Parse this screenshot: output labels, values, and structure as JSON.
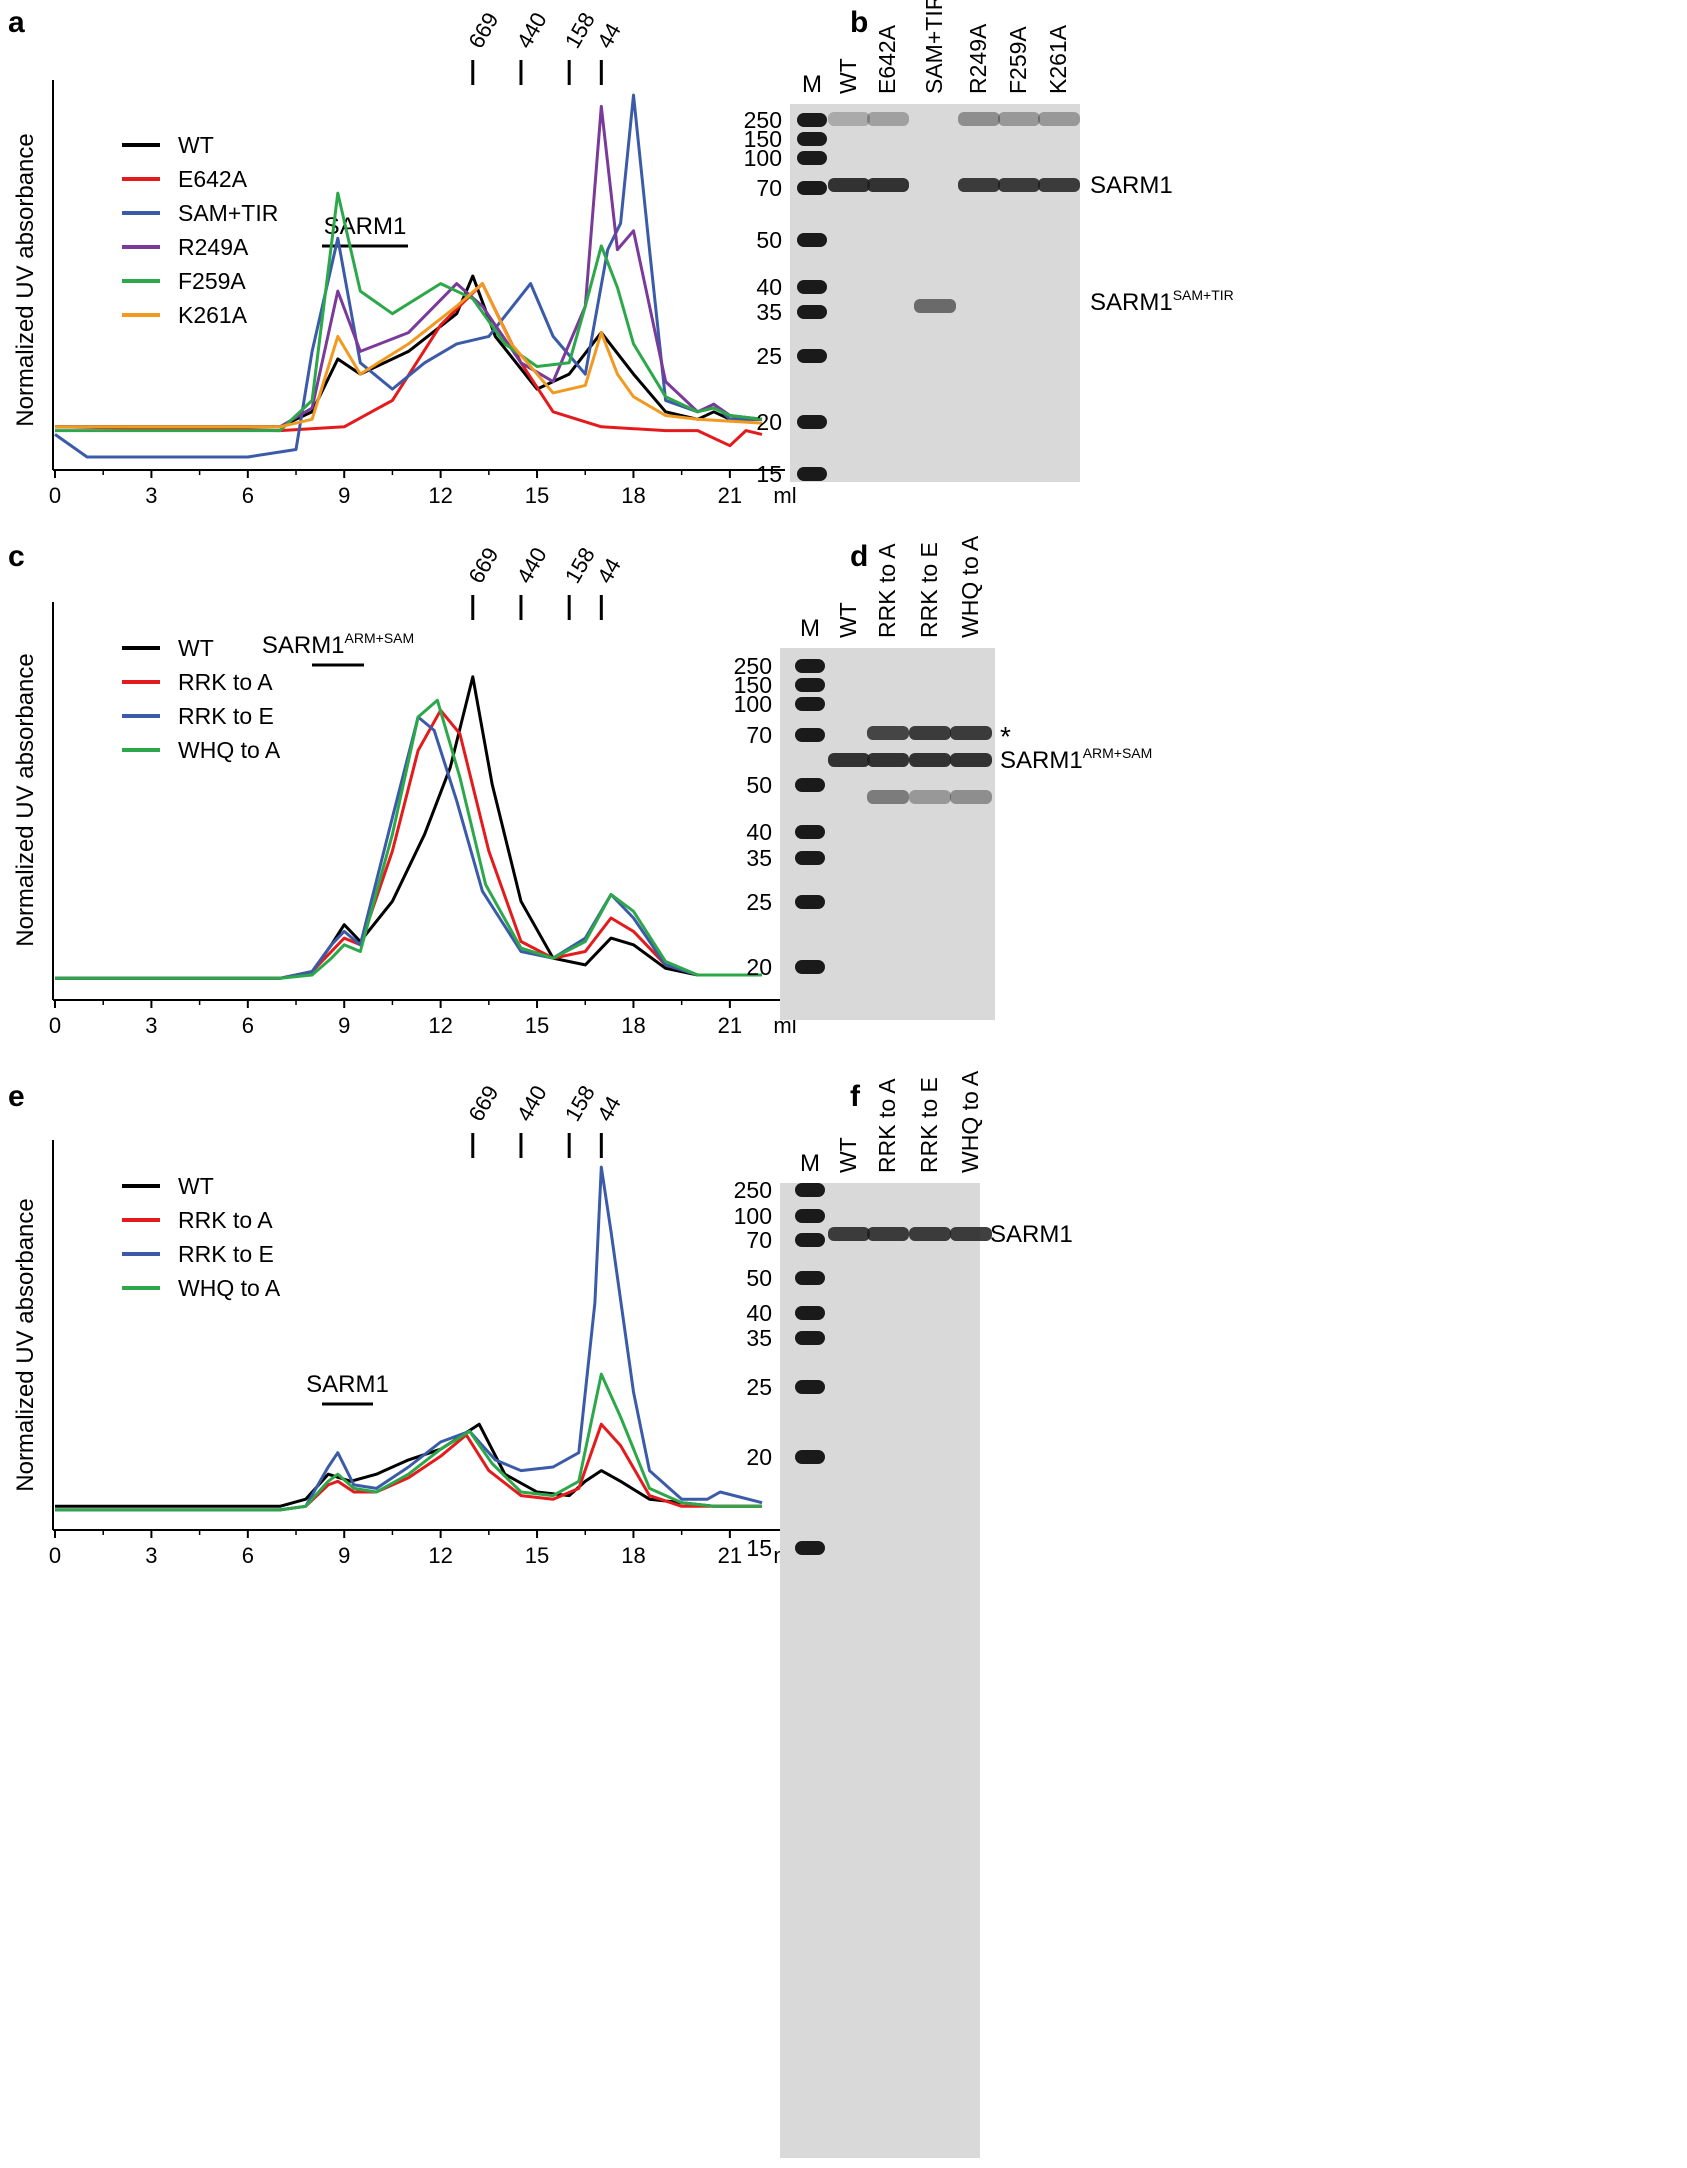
{
  "panels": {
    "a": {
      "letter": "a",
      "ylabel": "Normalized UV absorbance",
      "xunit": "ml",
      "xticks": [
        "0",
        "3",
        "6",
        "9",
        "12",
        "15",
        "18",
        "21"
      ],
      "markers": [
        "669",
        "440",
        "158",
        "44"
      ],
      "marker_positions_ml": [
        13.0,
        14.5,
        16.0,
        17.0
      ],
      "bracket_label": "SARM1",
      "bracket_sup": "",
      "legend": [
        {
          "name": "WT",
          "color": "#000000"
        },
        {
          "name": "E642A",
          "color": "#e41a1c"
        },
        {
          "name": "SAM+TIR",
          "color": "#3b5ba9"
        },
        {
          "name": "R249A",
          "color": "#7a3a9a"
        },
        {
          "name": "F259A",
          "color": "#2ca84a"
        },
        {
          "name": "K261A",
          "color": "#f29a20"
        }
      ]
    },
    "b": {
      "letter": "b",
      "marker_label": "M",
      "lanes": [
        "WT",
        "E642A",
        "SAM+TIR",
        "R249A",
        "F259A",
        "K261A"
      ],
      "mw": [
        "250",
        "150",
        "100",
        "70",
        "50",
        "40",
        "35",
        "25",
        "20",
        "15"
      ],
      "band_labels": [
        {
          "text": "SARM1",
          "sup": ""
        },
        {
          "text": "SARM1",
          "sup": "SAM+TIR"
        }
      ]
    },
    "c": {
      "letter": "c",
      "ylabel": "Normalized UV absorbance",
      "xunit": "ml",
      "xticks": [
        "0",
        "3",
        "6",
        "9",
        "12",
        "15",
        "18",
        "21"
      ],
      "markers": [
        "669",
        "440",
        "158",
        "44"
      ],
      "bracket_label": "SARM1",
      "bracket_sup": "ARM+SAM",
      "legend": [
        {
          "name": "WT",
          "color": "#000000"
        },
        {
          "name": "RRK to A",
          "color": "#e41a1c"
        },
        {
          "name": "RRK to E",
          "color": "#3b5ba9"
        },
        {
          "name": "WHQ to A",
          "color": "#2ca84a"
        }
      ]
    },
    "d": {
      "letter": "d",
      "marker_label": "M",
      "lanes": [
        "WT",
        "RRK to A",
        "RRK to E",
        "WHQ to A"
      ],
      "mw": [
        "250",
        "150",
        "100",
        "70",
        "50",
        "40",
        "35",
        "25",
        "20"
      ],
      "asterisk": "*",
      "band_labels": [
        {
          "text": "SARM1",
          "sup": "ARM+SAM"
        }
      ]
    },
    "e": {
      "letter": "e",
      "ylabel": "Normalized UV absorbance",
      "xunit": "ml",
      "xticks": [
        "0",
        "3",
        "6",
        "9",
        "12",
        "15",
        "18",
        "21"
      ],
      "markers": [
        "669",
        "440",
        "158",
        "44"
      ],
      "bracket_label": "SARM1",
      "bracket_sup": "",
      "legend": [
        {
          "name": "WT",
          "color": "#000000"
        },
        {
          "name": "RRK to A",
          "color": "#e41a1c"
        },
        {
          "name": "RRK to E",
          "color": "#3b5ba9"
        },
        {
          "name": "WHQ to A",
          "color": "#2ca84a"
        }
      ]
    },
    "f": {
      "letter": "f",
      "marker_label": "M",
      "lanes": [
        "WT",
        "RRK to A",
        "RRK to E",
        "WHQ to A"
      ],
      "mw": [
        "250",
        "100",
        "70",
        "50",
        "40",
        "35",
        "25",
        "20",
        "15"
      ],
      "band_labels": [
        {
          "text": "SARM1",
          "sup": ""
        }
      ]
    }
  },
  "chart_data": [
    {
      "type": "line",
      "panel": "a",
      "xlabel": "ml",
      "ylabel": "Normalized UV absorbance",
      "xlim": [
        0,
        22
      ],
      "ylim": [
        0,
        1
      ],
      "series": [
        {
          "name": "WT",
          "color": "#000000",
          "x": [
            0,
            7,
            8,
            8.8,
            9.5,
            11,
            12.5,
            13.0,
            13.7,
            15,
            16,
            17,
            18,
            19,
            20,
            20.5,
            21,
            22
          ],
          "y": [
            0.08,
            0.08,
            0.12,
            0.26,
            0.22,
            0.28,
            0.38,
            0.48,
            0.32,
            0.18,
            0.22,
            0.33,
            0.22,
            0.12,
            0.1,
            0.12,
            0.1,
            0.1
          ]
        },
        {
          "name": "E642A",
          "color": "#e41a1c",
          "x": [
            0,
            7,
            9,
            10.5,
            12,
            13.3,
            14.5,
            15.5,
            17,
            19,
            20,
            21,
            21.5,
            22
          ],
          "y": [
            0.08,
            0.07,
            0.08,
            0.15,
            0.35,
            0.46,
            0.25,
            0.12,
            0.08,
            0.07,
            0.07,
            0.03,
            0.07,
            0.06
          ]
        },
        {
          "name": "SAM+TIR",
          "color": "#3b5ba9",
          "x": [
            0,
            1,
            6,
            7.5,
            8,
            8.8,
            9.5,
            10.5,
            11.5,
            12.5,
            13.5,
            14.8,
            15.5,
            16.5,
            17.2,
            17.6,
            18,
            18.5,
            19,
            20,
            20.5,
            21,
            22
          ],
          "y": [
            0.06,
            0.0,
            0.0,
            0.02,
            0.28,
            0.58,
            0.25,
            0.18,
            0.25,
            0.3,
            0.32,
            0.46,
            0.32,
            0.22,
            0.55,
            0.62,
            0.96,
            0.55,
            0.15,
            0.12,
            0.14,
            0.1,
            0.1
          ]
        },
        {
          "name": "R249A",
          "color": "#7a3a9a",
          "x": [
            0,
            7,
            8,
            8.8,
            9.5,
            11,
            12.5,
            13.3,
            14.5,
            15.5,
            16.5,
            17.0,
            17.5,
            18,
            19,
            20,
            20.5,
            21,
            22
          ],
          "y": [
            0.08,
            0.08,
            0.13,
            0.44,
            0.28,
            0.33,
            0.46,
            0.4,
            0.25,
            0.2,
            0.4,
            0.93,
            0.55,
            0.6,
            0.2,
            0.12,
            0.14,
            0.11,
            0.1
          ]
        },
        {
          "name": "F259A",
          "color": "#2ca84a",
          "x": [
            0,
            7,
            8,
            8.8,
            9.5,
            10.5,
            12,
            13,
            14,
            15,
            16,
            16.5,
            17.0,
            17.5,
            18,
            19,
            20,
            20.5,
            21,
            22
          ],
          "y": [
            0.07,
            0.07,
            0.15,
            0.7,
            0.44,
            0.38,
            0.46,
            0.42,
            0.3,
            0.24,
            0.25,
            0.4,
            0.56,
            0.45,
            0.3,
            0.16,
            0.12,
            0.13,
            0.11,
            0.1
          ]
        },
        {
          "name": "K261A",
          "color": "#f29a20",
          "x": [
            0,
            7,
            8,
            8.8,
            9.5,
            11,
            12.5,
            13.3,
            14.2,
            15.5,
            16.5,
            17.0,
            17.5,
            18,
            19,
            20,
            22
          ],
          "y": [
            0.08,
            0.08,
            0.1,
            0.32,
            0.22,
            0.3,
            0.4,
            0.46,
            0.3,
            0.17,
            0.19,
            0.33,
            0.22,
            0.16,
            0.11,
            0.1,
            0.09
          ]
        }
      ]
    },
    {
      "type": "line",
      "panel": "c",
      "xlabel": "ml",
      "ylabel": "Normalized UV absorbance",
      "xlim": [
        0,
        22
      ],
      "ylim": [
        0,
        1
      ],
      "series": [
        {
          "name": "WT",
          "color": "#000000",
          "x": [
            0,
            7,
            8,
            8.6,
            9.0,
            9.5,
            10.5,
            11.5,
            12.3,
            13.0,
            13.6,
            14.5,
            15.5,
            16.5,
            17.3,
            18,
            19,
            20,
            22
          ],
          "y": [
            0.02,
            0.02,
            0.04,
            0.12,
            0.18,
            0.13,
            0.25,
            0.45,
            0.65,
            0.92,
            0.6,
            0.25,
            0.08,
            0.06,
            0.14,
            0.12,
            0.05,
            0.03,
            0.03
          ]
        },
        {
          "name": "RRK to A",
          "color": "#e41a1c",
          "x": [
            0,
            7,
            8,
            8.6,
            9.0,
            9.5,
            10.5,
            11.3,
            12.0,
            12.6,
            13.5,
            14.5,
            15.5,
            16.5,
            17.3,
            18,
            19,
            20,
            22
          ],
          "y": [
            0.02,
            0.02,
            0.04,
            0.1,
            0.14,
            0.12,
            0.4,
            0.7,
            0.82,
            0.75,
            0.4,
            0.13,
            0.08,
            0.1,
            0.2,
            0.16,
            0.06,
            0.03,
            0.03
          ]
        },
        {
          "name": "RRK to E",
          "color": "#3b5ba9",
          "x": [
            0,
            7,
            8,
            8.6,
            9.0,
            9.5,
            10.5,
            11.3,
            11.8,
            12.5,
            13.3,
            14.5,
            15.5,
            16.5,
            17.3,
            18,
            19,
            20,
            22
          ],
          "y": [
            0.02,
            0.02,
            0.04,
            0.12,
            0.16,
            0.12,
            0.5,
            0.8,
            0.76,
            0.55,
            0.28,
            0.1,
            0.08,
            0.14,
            0.27,
            0.2,
            0.06,
            0.03,
            0.03
          ]
        },
        {
          "name": "WHQ to A",
          "color": "#2ca84a",
          "x": [
            0,
            7,
            8,
            8.6,
            9.0,
            9.5,
            10.5,
            11.3,
            11.9,
            12.6,
            13.4,
            14.5,
            15.5,
            16.5,
            17.3,
            18,
            19,
            20,
            22
          ],
          "y": [
            0.02,
            0.02,
            0.03,
            0.08,
            0.12,
            0.1,
            0.45,
            0.8,
            0.85,
            0.62,
            0.3,
            0.11,
            0.08,
            0.13,
            0.27,
            0.22,
            0.07,
            0.03,
            0.03
          ]
        }
      ]
    },
    {
      "type": "line",
      "panel": "e",
      "xlabel": "ml",
      "ylabel": "Normalized UV absorbance",
      "xlim": [
        0,
        22
      ],
      "ylim": [
        0,
        1
      ],
      "series": [
        {
          "name": "WT",
          "color": "#000000",
          "x": [
            0,
            7,
            7.8,
            8.5,
            9.2,
            10,
            11,
            12,
            13.2,
            14,
            15,
            16,
            16.5,
            17.0,
            17.6,
            18.5,
            19.5,
            20.5,
            22
          ],
          "y": [
            0.03,
            0.03,
            0.05,
            0.12,
            0.1,
            0.12,
            0.16,
            0.19,
            0.26,
            0.12,
            0.07,
            0.06,
            0.1,
            0.13,
            0.1,
            0.05,
            0.04,
            0.03,
            0.03
          ]
        },
        {
          "name": "RRK to A",
          "color": "#e41a1c",
          "x": [
            0,
            7,
            7.8,
            8.5,
            8.8,
            9.3,
            10,
            11,
            12,
            12.8,
            13.5,
            14.5,
            15.5,
            16.3,
            17.0,
            17.6,
            18.5,
            19.5,
            20.5,
            22
          ],
          "y": [
            0.02,
            0.02,
            0.03,
            0.09,
            0.1,
            0.07,
            0.07,
            0.11,
            0.17,
            0.23,
            0.13,
            0.06,
            0.05,
            0.08,
            0.26,
            0.2,
            0.06,
            0.03,
            0.03,
            0.03
          ]
        },
        {
          "name": "RRK to E",
          "color": "#3b5ba9",
          "x": [
            0,
            7,
            7.8,
            8.5,
            8.8,
            9.3,
            10,
            11,
            12,
            12.9,
            13.7,
            14.5,
            15.5,
            16.3,
            16.8,
            17.0,
            17.3,
            18,
            18.5,
            19.5,
            20.3,
            20.7,
            22
          ],
          "y": [
            0.02,
            0.02,
            0.03,
            0.14,
            0.18,
            0.09,
            0.08,
            0.14,
            0.21,
            0.24,
            0.16,
            0.13,
            0.14,
            0.18,
            0.6,
            0.98,
            0.8,
            0.35,
            0.13,
            0.05,
            0.05,
            0.07,
            0.04
          ]
        },
        {
          "name": "WHQ to A",
          "color": "#2ca84a",
          "x": [
            0,
            7,
            7.8,
            8.5,
            8.8,
            9.3,
            10,
            11,
            12,
            12.9,
            13.6,
            14.5,
            15.5,
            16.3,
            17.0,
            17.6,
            18.5,
            19.5,
            20.5,
            22
          ],
          "y": [
            0.02,
            0.02,
            0.03,
            0.1,
            0.12,
            0.08,
            0.07,
            0.12,
            0.19,
            0.24,
            0.15,
            0.07,
            0.06,
            0.1,
            0.4,
            0.28,
            0.08,
            0.04,
            0.03,
            0.03
          ]
        }
      ]
    }
  ]
}
